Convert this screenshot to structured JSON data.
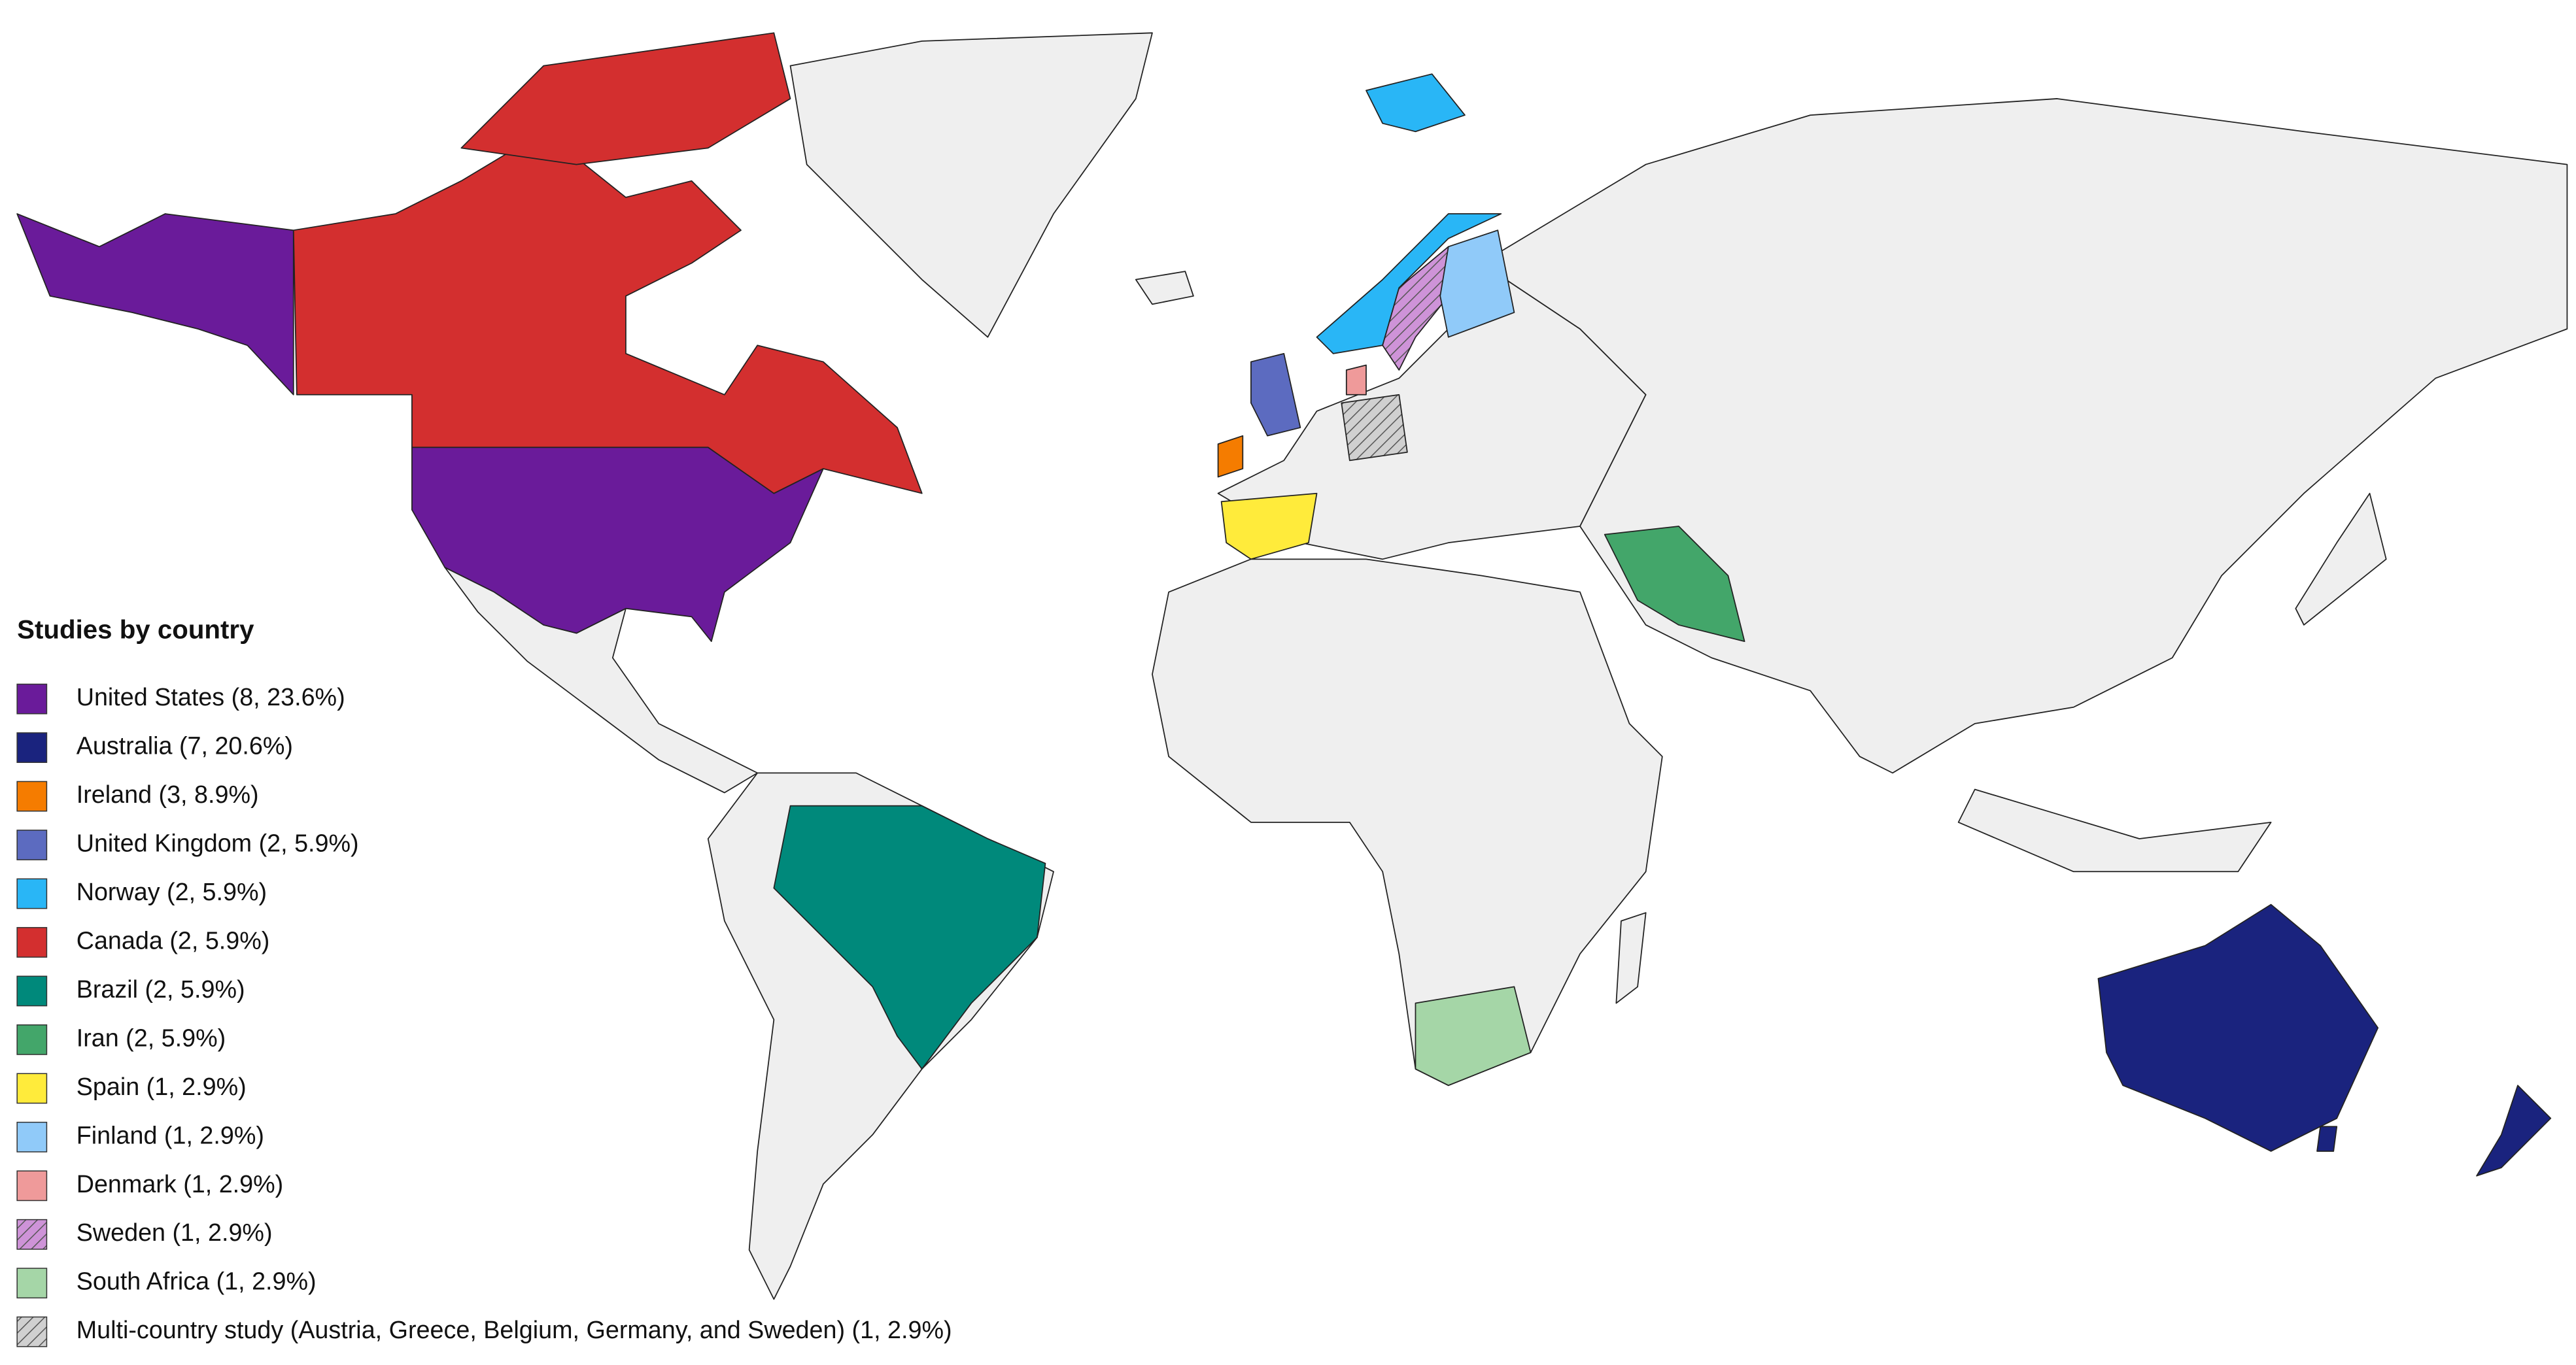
{
  "legend": {
    "title": "Studies by country",
    "items": [
      {
        "label": "United States (8, 23.6%)",
        "color": "#6a1b9a"
      },
      {
        "label": "Australia (7, 20.6%)",
        "color": "#1a237e"
      },
      {
        "label": "Ireland (3, 8.9%)",
        "color": "#f57c00"
      },
      {
        "label": "United Kingdom (2, 5.9%)",
        "color": "#5c6bc0"
      },
      {
        "label": "Norway (2, 5.9%)",
        "color": "#29b6f6"
      },
      {
        "label": "Canada (2, 5.9%)",
        "color": "#d32f2f"
      },
      {
        "label": "Brazil (2, 5.9%)",
        "color": "#00897b"
      },
      {
        "label": "Iran (2, 5.9%)",
        "color": "#43a66a"
      },
      {
        "label": "Spain (1, 2.9%)",
        "color": "#ffeb3b"
      },
      {
        "label": "Finland (1, 2.9%)",
        "color": "#90caf9"
      },
      {
        "label": "Denmark (1, 2.9%)",
        "color": "#ef9a9a"
      },
      {
        "label": "Sweden (1, 2.9%)",
        "color": "#ce93d8",
        "hatched": true
      },
      {
        "label": "South Africa (1, 2.9%)",
        "color": "#a5d6a7"
      },
      {
        "label": "Multi-country study (Austria, Greece, Belgium, Germany, and Sweden) (1, 2.9%)",
        "color": "#d0d0d0",
        "hatched": true
      }
    ]
  }
}
